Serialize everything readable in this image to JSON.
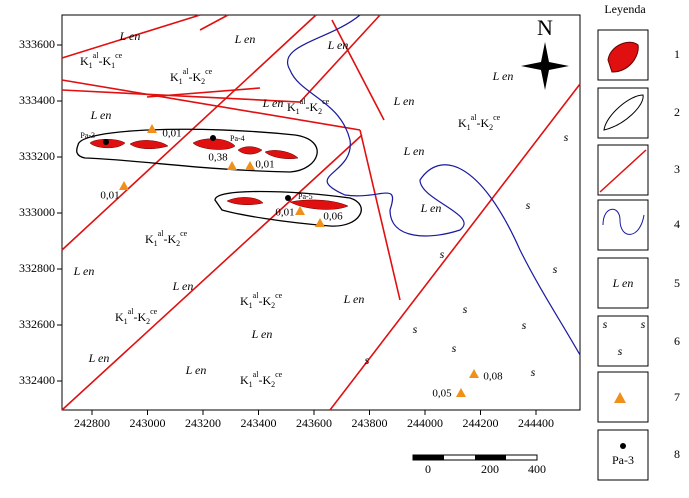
{
  "map": {
    "xticks": [
      242800,
      243000,
      243200,
      243400,
      243600,
      243800,
      244000,
      244200,
      244400
    ],
    "yticks": [
      333600,
      333400,
      333200,
      333000,
      332800,
      332600,
      332400
    ],
    "north": "N",
    "lithology_labels": [
      "L en",
      "L en",
      "L en",
      "L en",
      "L en",
      "L en",
      "L en",
      "L en",
      "L en",
      "L en",
      "L en",
      "L en",
      "L en",
      "L en",
      "L en"
    ],
    "sand_labels": [
      "s",
      "s",
      "s",
      "s",
      "s",
      "s",
      "s",
      "s",
      "s",
      "s"
    ],
    "formations": [
      {
        "k1": "K",
        "s1": "1",
        "p1": "al",
        "k2": "-K",
        "s2": "1",
        "p2": "ce"
      },
      {
        "k1": "K",
        "s1": "1",
        "p1": "al",
        "k2": "-K",
        "s2": "2",
        "p2": "ce"
      },
      {
        "k1": "K",
        "s1": "1",
        "p1": "al",
        "k2": "-K",
        "s2": "2",
        "p2": "ce"
      },
      {
        "k1": "K",
        "s1": "1",
        "p1": "al",
        "k2": "-K",
        "s2": "2",
        "p2": "ce"
      },
      {
        "k1": "K",
        "s1": "1",
        "p1": "al",
        "k2": "-K",
        "s2": "2",
        "p2": "ce"
      },
      {
        "k1": "K",
        "s1": "1",
        "p1": "al",
        "k2": "-K",
        "s2": "2",
        "p2": "ce"
      },
      {
        "k1": "K",
        "s1": "1",
        "p1": "al",
        "k2": "-K",
        "s2": "2",
        "p2": "ce"
      },
      {
        "k1": "K",
        "s1": "1",
        "p1": "al",
        "k2": "-K",
        "s2": "2",
        "p2": "ce"
      }
    ],
    "samples": [
      "0,01",
      "0,38",
      "0,01",
      "0,01",
      "0,01",
      "0,06",
      "0,08",
      "0,05"
    ],
    "wells": [
      "Pa-3",
      "Pa-4",
      "Pa-5"
    ],
    "scale_labels": [
      "0",
      "200",
      "400"
    ]
  },
  "legend": {
    "title": "Leyenda",
    "numbers": [
      "1",
      "2",
      "3",
      "4",
      "5",
      "6",
      "7",
      "8"
    ],
    "item5": "L en",
    "item6": [
      "s",
      "s",
      "s"
    ],
    "item8": "Pa-3"
  }
}
